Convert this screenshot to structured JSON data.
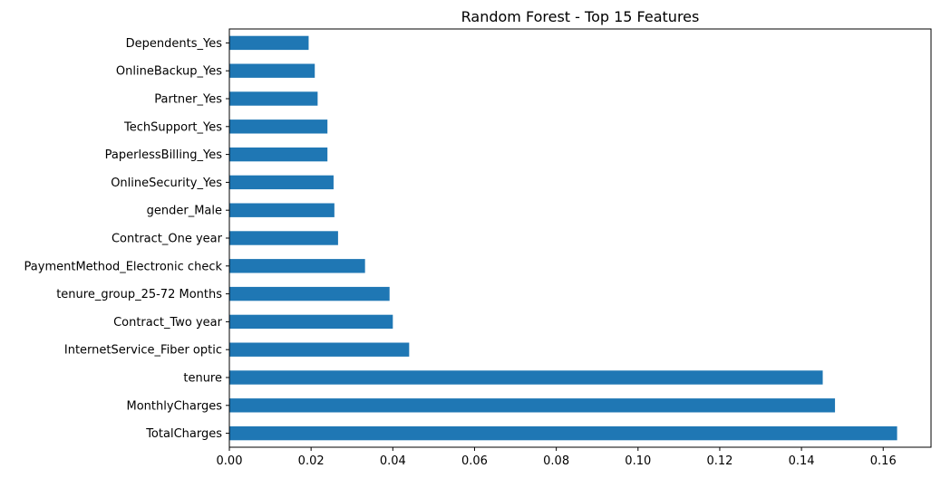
{
  "chart_data": {
    "type": "bar",
    "orientation": "horizontal",
    "title": "Random Forest - Top 15 Features",
    "xlabel": "",
    "ylabel": "",
    "categories": [
      "TotalCharges",
      "MonthlyCharges",
      "tenure",
      "InternetService_Fiber optic",
      "Contract_Two year",
      "tenure_group_25-72 Months",
      "PaymentMethod_Electronic check",
      "Contract_One year",
      "gender_Male",
      "OnlineSecurity_Yes",
      "PaperlessBilling_Yes",
      "TechSupport_Yes",
      "Partner_Yes",
      "OnlineBackup_Yes",
      "Dependents_Yes"
    ],
    "values": [
      0.1634,
      0.1482,
      0.1452,
      0.044,
      0.04,
      0.0392,
      0.0332,
      0.0266,
      0.0257,
      0.0255,
      0.024,
      0.024,
      0.0216,
      0.0209,
      0.0194
    ],
    "xlim": [
      0.0,
      0.1717
    ],
    "xticks": [
      "0.00",
      "0.02",
      "0.04",
      "0.06",
      "0.08",
      "0.10",
      "0.12",
      "0.14",
      "0.16"
    ],
    "bar_color": "#1f77b4",
    "grid": false,
    "legend": "none"
  }
}
